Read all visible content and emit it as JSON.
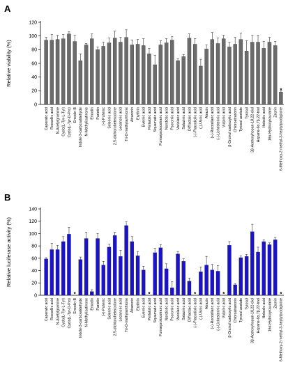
{
  "chart_data": [
    {
      "panel": "A",
      "type": "bar",
      "ylabel": "Relative viability (%)",
      "ylim": [
        0,
        120
      ],
      "yticks": [
        0,
        20,
        40,
        60,
        80,
        100,
        120
      ],
      "color": "#6b6b6b",
      "categories": [
        "Caperatic acid",
        "Roccellic acid",
        "N-Acetylgramine",
        "Cyclo(L-Tyr-L-Tyr)",
        "Cyclo(L-Tyr-D-Pro)",
        "Emodin B",
        "Indole-3-carboxaldehyde",
        "N-Methylisatinone",
        "Emodin",
        "Parietin",
        "(+)-Pulvinic",
        "Sclerinic acid",
        "2,5-dichloroheteroclone",
        "Lecanoric acid",
        "Tri-O-methylanthrone",
        "Atranorin",
        "Erythrin",
        "Evernic acid",
        "Perlatolic acid",
        "Squamatic acid",
        "Fumarprotocetraric acid",
        "Norstictic acid",
        "Psoromic acid",
        "Variolaric acid",
        "Salazinic acid",
        "Diffractaic acid",
        "(-)-Placodiolic acid",
        "(-)-Usnic acid",
        "Atrazin",
        "(+)-Roccellaric acid",
        "(-)-Lichesterinic acid",
        "Vulpinic acid",
        "β-Orcinol carboxylic acid",
        "Chloroatranorin",
        "Tyrosol acetate",
        "Tyrosol",
        "3β-Acetoxyhopan-18,22-diol",
        "Hopane-6α,7β,22-triol",
        "Heleolic acid",
        "16α-Hydroxykaurane",
        "Zeorin",
        "6-Methoxy-2 methyl-3-heptylprodiginine"
      ],
      "values": [
        94,
        94,
        95,
        96,
        103,
        92,
        64,
        87,
        96,
        80,
        85,
        90,
        97,
        91,
        98,
        87,
        88,
        86,
        74,
        58,
        87,
        90,
        94,
        64,
        70,
        97,
        88,
        56,
        81,
        95,
        89,
        96,
        84,
        88,
        95,
        78,
        91,
        91,
        82,
        91,
        86,
        18
      ],
      "errors": [
        4,
        8,
        6,
        6,
        3,
        9,
        10,
        2,
        7,
        4,
        6,
        7,
        10,
        7,
        11,
        7,
        7,
        10,
        8,
        14,
        6,
        6,
        5,
        3,
        3,
        6,
        8,
        10,
        6,
        10,
        8,
        5,
        7,
        10,
        9,
        15,
        10,
        10,
        10,
        7,
        6,
        2
      ],
      "significance": [
        "",
        "",
        "",
        "",
        "",
        "",
        "",
        "",
        "",
        "",
        "",
        "",
        "",
        "",
        "",
        "",
        "",
        "",
        "",
        "",
        "",
        "",
        "",
        "",
        "",
        "",
        "",
        "",
        "",
        "",
        "",
        "",
        "",
        "",
        "",
        "",
        "",
        "",
        "",
        "",
        "",
        "*"
      ]
    },
    {
      "panel": "B",
      "type": "bar",
      "ylabel": "Relative luciferase activity (%)",
      "ylim": [
        0,
        140
      ],
      "yticks": [
        0,
        20,
        40,
        60,
        80,
        100,
        120,
        140
      ],
      "color": "#1a13c9",
      "categories": [
        "Caperatic acid",
        "Roccellic acid",
        "N-Acetylgramine",
        "Cyclo(L-Tyr-L-Tyr)",
        "Cyclo(L-Tyr-D-Pro)",
        "Emodin B",
        "Indole-3-carboxaldehyde",
        "N-Methylisatinone",
        "Emodin",
        "Parietin",
        "(+)-Pulvinic",
        "Sclerinic acid",
        "2,5-dichloroheteroclone",
        "Lecanoric acid",
        "Tri-O-methylanthrone",
        "Atranorin",
        "Erythrin",
        "Evernic acid",
        "Perlatolic acid",
        "Squamatic acid",
        "Fumarprotocetraric acid",
        "Norstictic acid",
        "Psoromic acid",
        "Variolaric acid",
        "Salazinic acid",
        "Diffractaic acid",
        "(-)-Placodiolic acid",
        "(-)-Usnic acid",
        "Atrazin",
        "(+)-Roccellaric acid",
        "(-)-Lichesterinic acid",
        "Vulpinic acid",
        "β-Orcinol carboxylic acid",
        "Chloroatranorin",
        "Tyrosol acetate",
        "Tyrosol",
        "3β-Acetoxyhopan-18,22-diol",
        "Hopane-6α,7β,22-triol",
        "Heleolic acid",
        "16α-Hydroxykaurane",
        "Zeorin",
        "6-Methoxy-2 methyl-3-heptylprodiginine"
      ],
      "values": [
        59,
        74,
        74,
        87,
        99,
        0,
        58,
        92,
        6,
        92,
        49,
        78,
        97,
        63,
        113,
        87,
        64,
        41,
        0,
        69,
        77,
        43,
        12,
        67,
        55,
        23,
        0,
        38,
        49,
        41,
        39,
        0,
        81,
        17,
        61,
        63,
        103,
        70,
        87,
        82,
        90,
        0
      ],
      "errors": [
        2,
        10,
        7,
        8,
        11,
        0,
        4,
        10,
        3,
        8,
        6,
        5,
        5,
        10,
        6,
        8,
        7,
        6,
        0,
        7,
        5,
        8,
        10,
        4,
        4,
        5,
        0,
        8,
        14,
        9,
        9,
        0,
        6,
        2,
        3,
        3,
        12,
        8,
        3,
        3,
        3,
        0
      ],
      "significance": [
        "",
        "",
        "",
        "",
        "",
        "*",
        "",
        "",
        "",
        "",
        "",
        "",
        "",
        "",
        "",
        "",
        "",
        "",
        "*",
        "",
        "",
        "",
        "",
        "",
        "",
        "",
        "*",
        "",
        "",
        "",
        "",
        "*",
        "",
        "",
        "",
        "",
        "",
        "",
        "",
        "",
        "",
        "*"
      ]
    }
  ],
  "labels": {
    "panel_a": "A",
    "panel_b": "B",
    "ylabel_a": "Relative viability (%)",
    "ylabel_b": "Relative luciferase activity (%)"
  }
}
